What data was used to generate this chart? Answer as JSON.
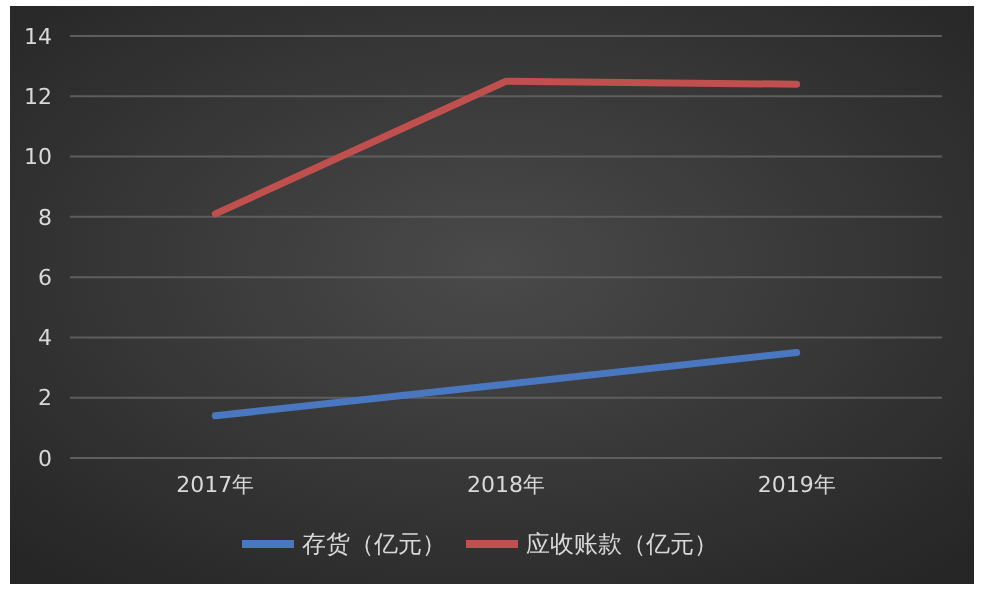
{
  "chart_data": {
    "type": "line",
    "categories": [
      "2017年",
      "2018年",
      "2019年"
    ],
    "series": [
      {
        "name": "存货（亿元）",
        "color": "#4a78c0",
        "values": [
          1.4,
          2.45,
          3.5
        ]
      },
      {
        "name": "应收账款（亿元）",
        "color": "#c0504d",
        "values": [
          8.1,
          12.5,
          12.4
        ]
      }
    ],
    "ylim": [
      0,
      14
    ],
    "yticks": [
      0,
      2,
      4,
      6,
      8,
      10,
      12,
      14
    ],
    "grid": "y",
    "legend": "bottom",
    "marker": "none",
    "line_style": "solid"
  }
}
